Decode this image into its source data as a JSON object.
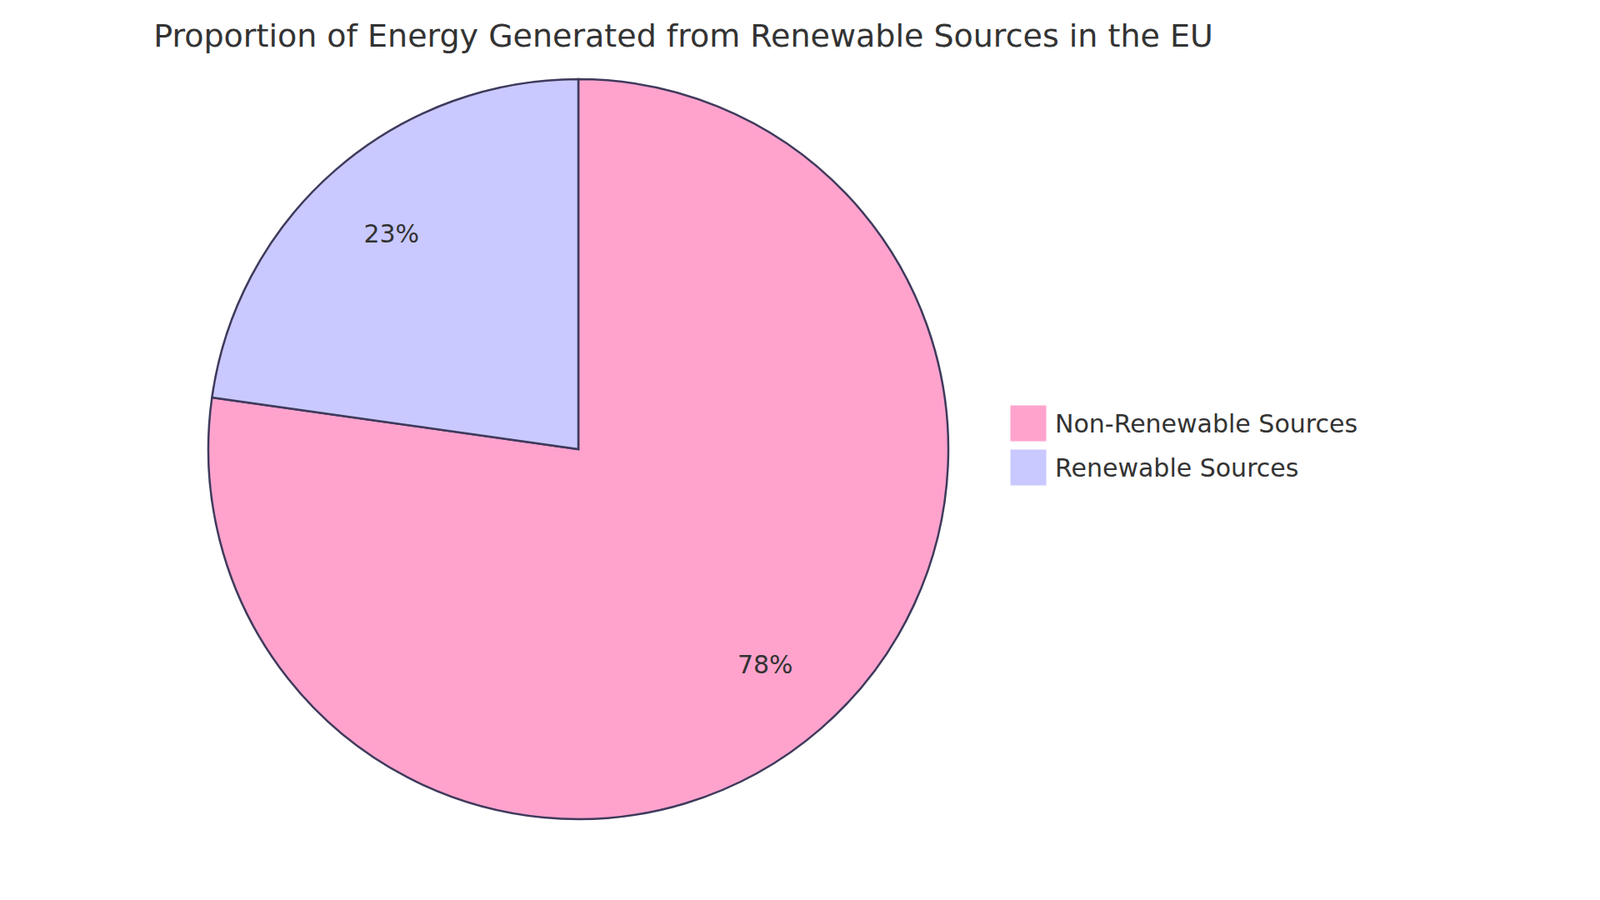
{
  "chart_data": {
    "type": "pie",
    "title": "Proportion of Energy Generated from Renewable Sources in the EU",
    "categories": [
      "Non-Renewable Sources",
      "Renewable Sources"
    ],
    "values": [
      78,
      23
    ],
    "value_labels": [
      "78%",
      "23%"
    ],
    "colors": [
      "#ffa3cd",
      "#c9c9ff"
    ],
    "data_labels": true,
    "legend": "right"
  }
}
